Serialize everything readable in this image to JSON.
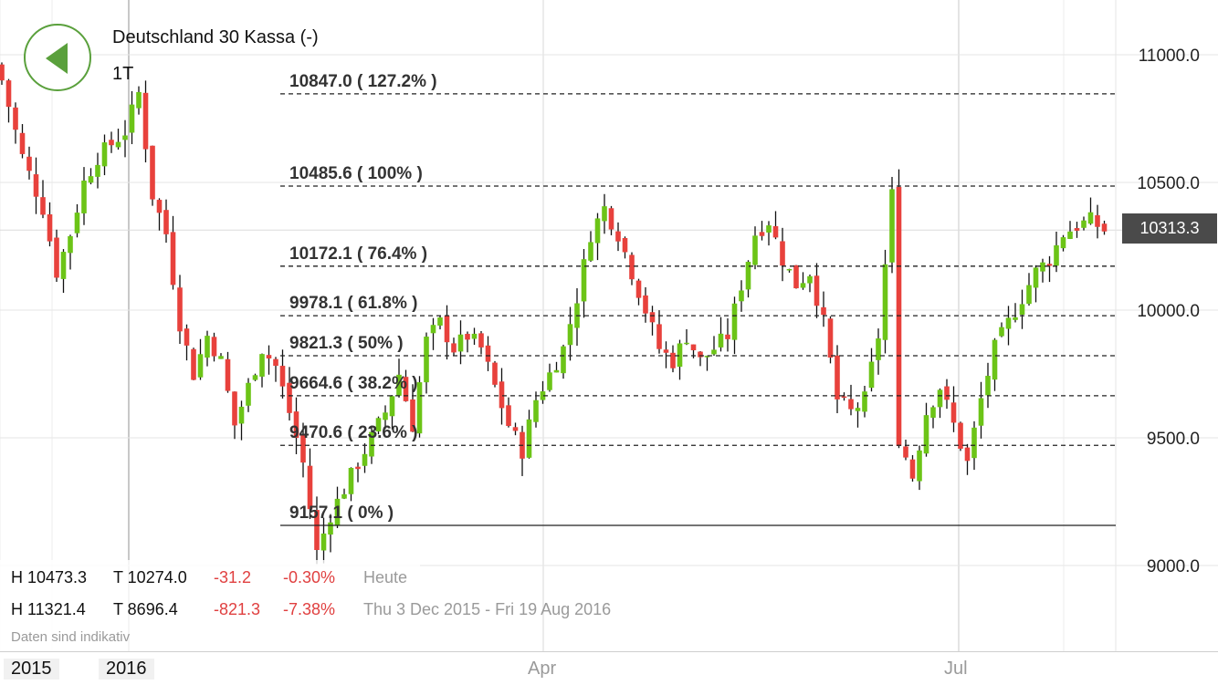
{
  "header": {
    "title": "Deutschland 30 Kassa (-)",
    "period": "1T"
  },
  "current_price": "10313.3",
  "stats": {
    "today": {
      "high": "H 10473.3",
      "low": "T 10274.0",
      "change": "-31.2",
      "change_pct": "-0.30%",
      "label": "Heute"
    },
    "range": {
      "high": "H 11321.4",
      "low": "T 8696.4",
      "change": "-821.3",
      "change_pct": "-7.38%",
      "label": "Thu 3 Dec 2015 - Fri 19 Aug 2016"
    }
  },
  "note": "Daten sind indikativ",
  "x_axis": {
    "year_labels": [
      "2015",
      "2016"
    ],
    "month_labels": [
      "Apr",
      "Jul"
    ]
  },
  "colors": {
    "up": "#6cc417",
    "down": "#e8413c",
    "accent": "#5aa03c"
  },
  "chart_data": {
    "type": "candlestick",
    "y_axis": {
      "ticks": [
        9000.0,
        9500.0,
        10000.0,
        10500.0,
        11000.0
      ],
      "tick_labels": [
        "9000.0",
        "9500.0",
        "10000.0",
        "10500.0",
        "11000.0"
      ],
      "range": [
        8800,
        11200
      ]
    },
    "fibonacci_levels": [
      {
        "value": 10847.0,
        "label": "10847.0 ( 127.2% )",
        "style": "dashed"
      },
      {
        "value": 10485.6,
        "label": "10485.6 ( 100% )",
        "style": "dashed"
      },
      {
        "value": 10172.1,
        "label": "10172.1 ( 76.4% )",
        "style": "dashed"
      },
      {
        "value": 9978.1,
        "label": "9978.1 ( 61.8% )",
        "style": "dashed"
      },
      {
        "value": 9821.3,
        "label": "9821.3 ( 50% )",
        "style": "dashed"
      },
      {
        "value": 9664.6,
        "label": "9664.6 ( 38.2% )",
        "style": "dashed"
      },
      {
        "value": 9470.6,
        "label": "9470.6 ( 23.6% )",
        "style": "dashed"
      },
      {
        "value": 9157.1,
        "label": "9157.1 ( 0% )",
        "style": "solid"
      }
    ],
    "current_value": 10313.3,
    "grid": true,
    "ohlc_hint": "daily candles from Dec 2015 to Aug 2016; waypoints are approximate closes",
    "waypoints": [
      [
        0,
        10900
      ],
      [
        3,
        10600
      ],
      [
        6,
        10400
      ],
      [
        8,
        10150
      ],
      [
        10,
        10300
      ],
      [
        12,
        10500
      ],
      [
        14,
        10600
      ],
      [
        16,
        10650
      ],
      [
        18,
        10700
      ],
      [
        20,
        10850
      ],
      [
        22,
        10450
      ],
      [
        24,
        10300
      ],
      [
        26,
        9950
      ],
      [
        28,
        9750
      ],
      [
        30,
        9900
      ],
      [
        32,
        9800
      ],
      [
        34,
        9550
      ],
      [
        36,
        9700
      ],
      [
        38,
        9850
      ],
      [
        40,
        9780
      ],
      [
        42,
        9600
      ],
      [
        44,
        9400
      ],
      [
        46,
        9050
      ],
      [
        48,
        9200
      ],
      [
        50,
        9300
      ],
      [
        52,
        9400
      ],
      [
        54,
        9500
      ],
      [
        56,
        9600
      ],
      [
        58,
        9750
      ],
      [
        60,
        9550
      ],
      [
        62,
        9880
      ],
      [
        64,
        9950
      ],
      [
        66,
        9850
      ],
      [
        68,
        9900
      ],
      [
        70,
        9850
      ],
      [
        72,
        9700
      ],
      [
        74,
        9550
      ],
      [
        76,
        9450
      ],
      [
        78,
        9650
      ],
      [
        80,
        9750
      ],
      [
        82,
        9850
      ],
      [
        84,
        10050
      ],
      [
        86,
        10300
      ],
      [
        88,
        10400
      ],
      [
        90,
        10300
      ],
      [
        92,
        10150
      ],
      [
        94,
        10000
      ],
      [
        96,
        9850
      ],
      [
        98,
        9800
      ],
      [
        100,
        9900
      ],
      [
        102,
        9800
      ],
      [
        104,
        9850
      ],
      [
        106,
        9900
      ],
      [
        108,
        10100
      ],
      [
        110,
        10300
      ],
      [
        112,
        10350
      ],
      [
        114,
        10200
      ],
      [
        116,
        10100
      ],
      [
        118,
        10150
      ],
      [
        120,
        9950
      ],
      [
        122,
        9650
      ],
      [
        124,
        9600
      ],
      [
        126,
        9650
      ],
      [
        128,
        9900
      ],
      [
        130,
        10450
      ],
      [
        131,
        9500
      ],
      [
        133,
        9350
      ],
      [
        135,
        9600
      ],
      [
        137,
        9700
      ],
      [
        139,
        9550
      ],
      [
        141,
        9400
      ],
      [
        143,
        9650
      ],
      [
        145,
        9850
      ],
      [
        147,
        9950
      ],
      [
        149,
        10050
      ],
      [
        151,
        10150
      ],
      [
        153,
        10200
      ],
      [
        155,
        10300
      ],
      [
        157,
        10330
      ],
      [
        159,
        10350
      ],
      [
        161,
        10313
      ]
    ]
  }
}
